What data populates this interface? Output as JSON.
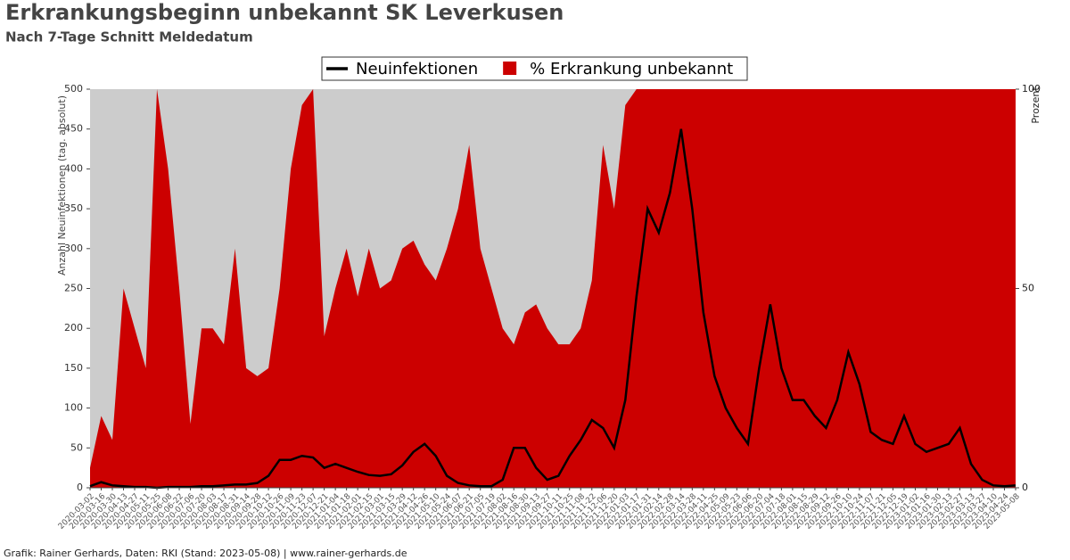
{
  "chart_data": {
    "type": "line_area",
    "title": "Erkrankungsbeginn unbekannt SK Leverkusen",
    "subtitle": "Nach 7-Tage Schnitt Meldedatum",
    "y_label": "Anzahl Neuinfektionen (tag. absolut)",
    "y2_label": "Prozent",
    "footer": "Grafik: Rainer Gerhards, Daten: RKI (Stand: 2023-05-08) | www.rainer-gerhards.de",
    "legend": "top",
    "background": "#cccccc",
    "x": [
      "2020-03-02",
      "2020-03-16",
      "2020-03-30",
      "2020-04-13",
      "2020-04-27",
      "2020-05-11",
      "2020-05-25",
      "2020-06-08",
      "2020-06-22",
      "2020-07-06",
      "2020-07-20",
      "2020-08-03",
      "2020-08-17",
      "2020-08-31",
      "2020-09-14",
      "2020-09-28",
      "2020-10-12",
      "2020-10-26",
      "2020-11-09",
      "2020-11-23",
      "2020-12-07",
      "2020-12-21",
      "2021-01-04",
      "2021-01-18",
      "2021-02-01",
      "2021-02-15",
      "2021-03-01",
      "2021-03-15",
      "2021-03-29",
      "2021-04-12",
      "2021-04-26",
      "2021-05-10",
      "2021-05-24",
      "2021-06-07",
      "2021-06-21",
      "2021-07-05",
      "2021-07-19",
      "2021-08-02",
      "2021-08-16",
      "2021-08-30",
      "2021-09-13",
      "2021-09-27",
      "2021-10-11",
      "2021-10-25",
      "2021-11-08",
      "2021-11-22",
      "2021-12-06",
      "2021-12-20",
      "2022-01-03",
      "2022-01-17",
      "2022-01-31",
      "2022-02-14",
      "2022-02-28",
      "2022-03-14",
      "2022-03-28",
      "2022-04-11",
      "2022-04-25",
      "2022-05-09",
      "2022-05-23",
      "2022-06-06",
      "2022-06-20",
      "2022-07-04",
      "2022-07-18",
      "2022-08-01",
      "2022-08-15",
      "2022-08-29",
      "2022-09-12",
      "2022-09-26",
      "2022-10-10",
      "2022-10-24",
      "2022-11-07",
      "2022-11-21",
      "2022-12-05",
      "2022-12-19",
      "2023-01-02",
      "2023-01-16",
      "2023-01-30",
      "2023-02-13",
      "2023-02-27",
      "2023-03-13",
      "2023-03-27",
      "2023-04-10",
      "2023-04-24",
      "2023-05-08"
    ],
    "series": [
      {
        "name": "Neuinfektionen",
        "color": "#000000",
        "values": [
          2,
          7,
          3,
          2,
          1,
          1,
          0,
          1,
          1,
          1,
          2,
          2,
          3,
          4,
          4,
          6,
          15,
          35,
          35,
          40,
          38,
          25,
          30,
          25,
          20,
          16,
          15,
          17,
          28,
          45,
          55,
          40,
          15,
          6,
          3,
          2,
          2,
          10,
          50,
          50,
          25,
          10,
          15,
          40,
          60,
          85,
          75,
          50,
          110,
          240,
          350,
          320,
          370,
          450,
          350,
          220,
          140,
          100,
          75,
          55,
          150,
          230,
          150,
          110,
          110,
          90,
          75,
          110,
          170,
          130,
          70,
          60,
          55,
          90,
          55,
          45,
          50,
          55,
          75,
          30,
          10,
          3,
          2,
          3
        ]
      },
      {
        "name": "% Erkrankung unbekannt",
        "color": "#cc0000",
        "axis": "y2",
        "values": [
          5,
          18,
          12,
          50,
          40,
          30,
          100,
          80,
          50,
          16,
          40,
          40,
          36,
          60,
          30,
          28,
          30,
          50,
          80,
          96,
          100,
          38,
          50,
          60,
          48,
          60,
          50,
          52,
          60,
          62,
          56,
          52,
          60,
          70,
          86,
          60,
          50,
          40,
          36,
          44,
          46,
          40,
          36,
          36,
          40,
          52,
          86,
          70,
          96,
          100,
          100,
          100,
          100,
          100,
          100,
          100,
          100,
          100,
          100,
          100,
          100,
          100,
          100,
          100,
          100,
          100,
          100,
          100,
          100,
          100,
          100,
          100,
          100,
          100,
          100,
          100,
          100,
          100,
          100,
          100,
          100,
          100,
          100,
          100
        ]
      }
    ],
    "ylim": [
      0,
      500
    ],
    "yticks": [
      0,
      50,
      100,
      150,
      200,
      250,
      300,
      350,
      400,
      450,
      500
    ],
    "y2lim": [
      0,
      100
    ],
    "y2ticks": [
      0,
      50,
      100
    ]
  }
}
